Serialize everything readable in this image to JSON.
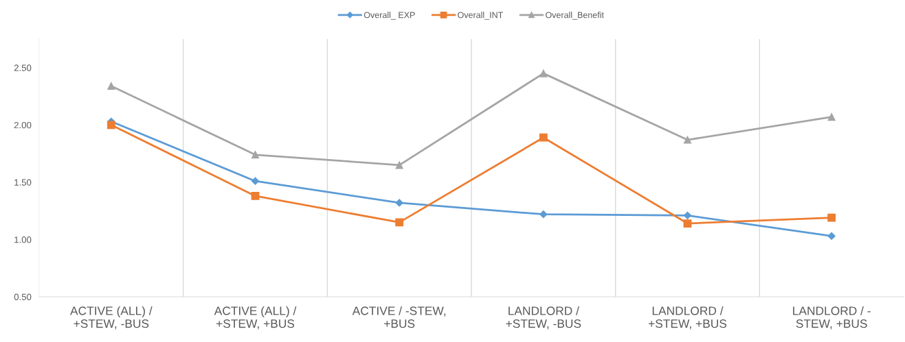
{
  "chart_data": {
    "type": "line",
    "categories": [
      "ACTIVE (ALL) /\n+STEW, -BUS",
      "ACTIVE (ALL) /\n+STEW, +BUS",
      "ACTIVE / -STEW,\n+BUS",
      "LANDLORD /\n+STEW, -BUS",
      "LANDLORD /\n+STEW, +BUS",
      "LANDLORD / -\nSTEW, +BUS"
    ],
    "series": [
      {
        "name": "Overall_ EXP",
        "color": "#5b9bd5",
        "marker": "diamond",
        "values": [
          2.03,
          1.51,
          1.32,
          1.22,
          1.21,
          1.03
        ]
      },
      {
        "name": "Overall_INT",
        "color": "#ed7d31",
        "marker": "square",
        "values": [
          2.0,
          1.38,
          1.15,
          1.89,
          1.14,
          1.19
        ]
      },
      {
        "name": "Overall_Benefit",
        "color": "#a5a5a5",
        "marker": "triangle",
        "values": [
          2.34,
          1.74,
          1.65,
          2.45,
          1.87,
          2.07
        ]
      }
    ],
    "ylim": [
      0.5,
      2.75
    ],
    "yticks": [
      {
        "value": 0.5,
        "label": "0.50"
      },
      {
        "value": 1.0,
        "label": "1.00"
      },
      {
        "value": 1.5,
        "label": "1.50"
      },
      {
        "value": 2.0,
        "label": "2.00"
      },
      {
        "value": 2.5,
        "label": "2.50"
      }
    ],
    "grid": "x",
    "legend": "top",
    "line_style": "solid"
  }
}
